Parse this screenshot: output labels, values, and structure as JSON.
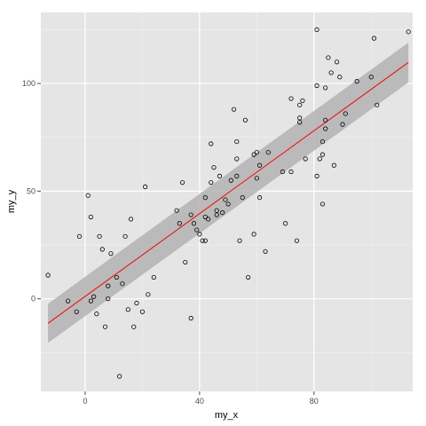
{
  "chart_data": {
    "type": "scatter",
    "xlabel": "my_x",
    "ylabel": "my_y",
    "xlim": [
      -15.5,
      114.5
    ],
    "ylim": [
      -43,
      133
    ],
    "x_ticks": [
      0,
      40,
      80
    ],
    "x_tick_labels": [
      "0",
      "40",
      "80"
    ],
    "y_ticks": [
      0,
      50,
      100
    ],
    "y_tick_labels": [
      "0",
      "50",
      "100"
    ],
    "grid": true,
    "colors": {
      "panel_background": "#e5e5e5",
      "grid_major": "#ffffff",
      "grid_minor": "#f2f2f2",
      "points": "#000000",
      "fit_line": "#ff0000",
      "confidence_band": "#b3b3b3"
    },
    "fit": {
      "method": "lm",
      "x": [
        -13,
        113
      ],
      "y": [
        -11.4,
        109.8
      ],
      "band_lower": [
        -20.5,
        100.5
      ],
      "band_upper": [
        -2.3,
        119.0
      ]
    },
    "points": [
      {
        "x": -13,
        "y": 11
      },
      {
        "x": -6,
        "y": -1
      },
      {
        "x": -3,
        "y": -6
      },
      {
        "x": -2,
        "y": 29
      },
      {
        "x": 1,
        "y": 48
      },
      {
        "x": 2,
        "y": 38
      },
      {
        "x": 2,
        "y": -1
      },
      {
        "x": 3,
        "y": 1
      },
      {
        "x": 4,
        "y": -7
      },
      {
        "x": 5,
        "y": 29
      },
      {
        "x": 6,
        "y": 23
      },
      {
        "x": 7,
        "y": -13
      },
      {
        "x": 8,
        "y": 6
      },
      {
        "x": 8,
        "y": 0
      },
      {
        "x": 9,
        "y": 21
      },
      {
        "x": 11,
        "y": 10
      },
      {
        "x": 12,
        "y": -36
      },
      {
        "x": 13,
        "y": 7
      },
      {
        "x": 14,
        "y": 29
      },
      {
        "x": 15,
        "y": -5
      },
      {
        "x": 16,
        "y": 37
      },
      {
        "x": 17,
        "y": -13
      },
      {
        "x": 18,
        "y": -2
      },
      {
        "x": 20,
        "y": -6
      },
      {
        "x": 21,
        "y": 52
      },
      {
        "x": 22,
        "y": 2
      },
      {
        "x": 24,
        "y": 10
      },
      {
        "x": 32,
        "y": 41
      },
      {
        "x": 33,
        "y": 35
      },
      {
        "x": 34,
        "y": 54
      },
      {
        "x": 35,
        "y": 17
      },
      {
        "x": 37,
        "y": 39
      },
      {
        "x": 37,
        "y": -9
      },
      {
        "x": 38,
        "y": 35
      },
      {
        "x": 39,
        "y": 32
      },
      {
        "x": 40,
        "y": 30
      },
      {
        "x": 41,
        "y": 27
      },
      {
        "x": 42,
        "y": 27
      },
      {
        "x": 42,
        "y": 38
      },
      {
        "x": 42,
        "y": 47
      },
      {
        "x": 43,
        "y": 37
      },
      {
        "x": 44,
        "y": 72
      },
      {
        "x": 44,
        "y": 54
      },
      {
        "x": 45,
        "y": 61
      },
      {
        "x": 46,
        "y": 39
      },
      {
        "x": 46,
        "y": 41
      },
      {
        "x": 47,
        "y": 57
      },
      {
        "x": 48,
        "y": 40
      },
      {
        "x": 49,
        "y": 46
      },
      {
        "x": 50,
        "y": 44
      },
      {
        "x": 51,
        "y": 55
      },
      {
        "x": 52,
        "y": 88
      },
      {
        "x": 53,
        "y": 65
      },
      {
        "x": 53,
        "y": 73
      },
      {
        "x": 53,
        "y": 57
      },
      {
        "x": 54,
        "y": 27
      },
      {
        "x": 55,
        "y": 47
      },
      {
        "x": 56,
        "y": 83
      },
      {
        "x": 57,
        "y": 10
      },
      {
        "x": 59,
        "y": 30
      },
      {
        "x": 59,
        "y": 67
      },
      {
        "x": 60,
        "y": 68
      },
      {
        "x": 60,
        "y": 56
      },
      {
        "x": 61,
        "y": 62
      },
      {
        "x": 61,
        "y": 47
      },
      {
        "x": 63,
        "y": 22
      },
      {
        "x": 64,
        "y": 68
      },
      {
        "x": 69,
        "y": 59
      },
      {
        "x": 70,
        "y": 35
      },
      {
        "x": 72,
        "y": 93
      },
      {
        "x": 72,
        "y": 59
      },
      {
        "x": 74,
        "y": 27
      },
      {
        "x": 75,
        "y": 90
      },
      {
        "x": 75,
        "y": 84
      },
      {
        "x": 75,
        "y": 82
      },
      {
        "x": 76,
        "y": 92
      },
      {
        "x": 77,
        "y": 65
      },
      {
        "x": 81,
        "y": 125
      },
      {
        "x": 81,
        "y": 99
      },
      {
        "x": 81,
        "y": 57
      },
      {
        "x": 82,
        "y": 65
      },
      {
        "x": 83,
        "y": 73
      },
      {
        "x": 83,
        "y": 67
      },
      {
        "x": 83,
        "y": 44
      },
      {
        "x": 84,
        "y": 98
      },
      {
        "x": 84,
        "y": 83
      },
      {
        "x": 84,
        "y": 79
      },
      {
        "x": 85,
        "y": 112
      },
      {
        "x": 86,
        "y": 105
      },
      {
        "x": 87,
        "y": 62
      },
      {
        "x": 88,
        "y": 110
      },
      {
        "x": 89,
        "y": 103
      },
      {
        "x": 90,
        "y": 81
      },
      {
        "x": 91,
        "y": 86
      },
      {
        "x": 95,
        "y": 101
      },
      {
        "x": 100,
        "y": 103
      },
      {
        "x": 101,
        "y": 121
      },
      {
        "x": 102,
        "y": 90
      },
      {
        "x": 113,
        "y": 124
      }
    ]
  }
}
